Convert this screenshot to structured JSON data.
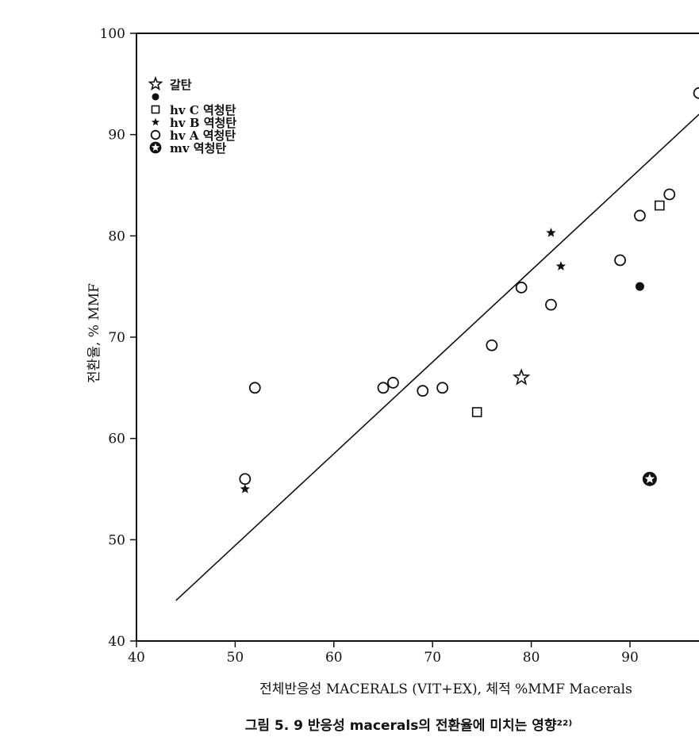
{
  "chart_data": {
    "type": "scatter",
    "title": "",
    "xlabel": "전체반응성  MACERALS (VIT+EX), 체적 %MMF  Macerals",
    "ylabel": "전환율,  % MMF",
    "caption": "그림 5. 9   반응성  macerals의  전환율에  미치는  영향²²⁾",
    "xlim": [
      40,
      97
    ],
    "ylim": [
      40,
      100
    ],
    "x_ticks": [
      40,
      50,
      60,
      70,
      80,
      90
    ],
    "y_ticks": [
      40,
      50,
      60,
      70,
      80,
      90,
      100
    ],
    "grid": false,
    "legend_position": "top-left",
    "series": [
      {
        "name": "갈탄",
        "marker": "star-open",
        "points": [
          [
            79,
            66
          ]
        ]
      },
      {
        "name": "hv  C 역청탄",
        "marker": "filled-circle",
        "points": [
          [
            91,
            75
          ]
        ]
      },
      {
        "name": "hv  C 역청탄",
        "marker": "open-square",
        "points": [
          [
            74.5,
            62.6
          ],
          [
            93,
            83
          ]
        ]
      },
      {
        "name": "hv  B  역청탄",
        "marker": "small-star-filled",
        "points": [
          [
            51,
            55
          ],
          [
            82,
            80.3
          ],
          [
            83,
            77
          ]
        ]
      },
      {
        "name": "hv  A 역청탄",
        "marker": "open-circle",
        "points": [
          [
            51,
            56
          ],
          [
            52,
            65
          ],
          [
            65,
            65
          ],
          [
            66,
            65.5
          ],
          [
            69,
            64.7
          ],
          [
            71,
            65
          ],
          [
            76,
            69.2
          ],
          [
            79,
            74.9
          ],
          [
            82,
            73.2
          ],
          [
            89,
            77.6
          ],
          [
            91,
            82
          ],
          [
            94,
            84.1
          ],
          [
            97,
            94.1
          ]
        ]
      },
      {
        "name": "mv  역청탄",
        "marker": "star-in-circle",
        "points": [
          [
            92,
            56
          ]
        ]
      }
    ],
    "trend_line": {
      "from": [
        44,
        44
      ],
      "to": [
        97,
        92
      ]
    }
  },
  "legend": {
    "items": [
      {
        "marker": "star-open",
        "label": "갈탄"
      },
      {
        "marker": "filled-circle",
        "label": ""
      },
      {
        "marker": "open-square",
        "label": "hv  C 역청탄"
      },
      {
        "marker": "small-star-filled",
        "label": "hv  B  역청탄"
      },
      {
        "marker": "open-circle",
        "label": "hv  A 역청탄"
      },
      {
        "marker": "star-in-circle",
        "label": "mv  역청탄"
      }
    ]
  },
  "colors": {
    "ink": "#111111",
    "background": "#ffffff"
  }
}
